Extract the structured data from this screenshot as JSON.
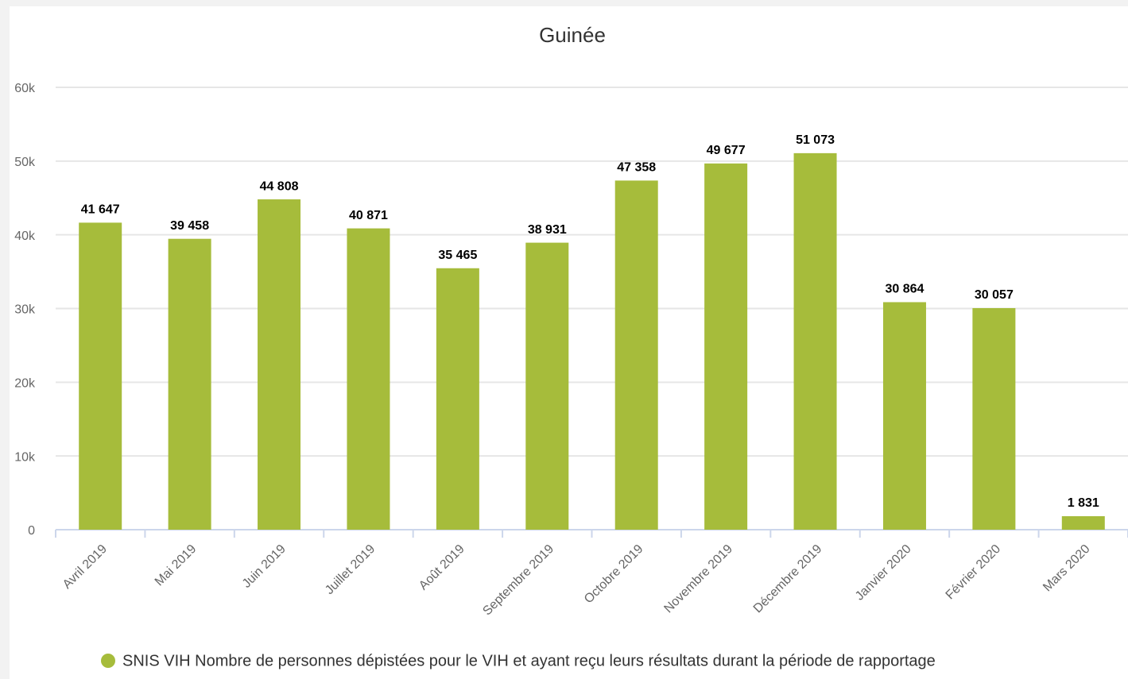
{
  "chart_data": {
    "type": "bar",
    "title": "Guinée",
    "categories": [
      "Avril 2019",
      "Mai 2019",
      "Juin 2019",
      "Juillet 2019",
      "Août 2019",
      "Septembre 2019",
      "Octobre 2019",
      "Novembre 2019",
      "Décembre 2019",
      "Janvier 2020",
      "Février 2020",
      "Mars 2020"
    ],
    "series": [
      {
        "name": "SNIS VIH Nombre de personnes dépistées pour le VIH et ayant reçu leurs résultats durant la période de rapportage",
        "color": "#a6bc3b",
        "values": [
          41647,
          39458,
          44808,
          40871,
          35465,
          38931,
          47358,
          49677,
          51073,
          30864,
          30057,
          1831
        ],
        "value_labels": [
          "41 647",
          "39 458",
          "44 808",
          "40 871",
          "35 465",
          "38 931",
          "47 358",
          "49 677",
          "51 073",
          "30 864",
          "30 057",
          "1 831"
        ]
      }
    ],
    "ylim": [
      0,
      60000
    ],
    "yticks": [
      0,
      {
        "value": 10000,
        "label": "10k"
      },
      {
        "value": 20000,
        "label": "20k"
      },
      {
        "value": 30000,
        "label": "30k"
      },
      {
        "value": 40000,
        "label": "40k"
      },
      {
        "value": 50000,
        "label": "50k"
      },
      {
        "value": 60000,
        "label": "60k"
      }
    ],
    "grid": true,
    "legend": "bottom"
  }
}
